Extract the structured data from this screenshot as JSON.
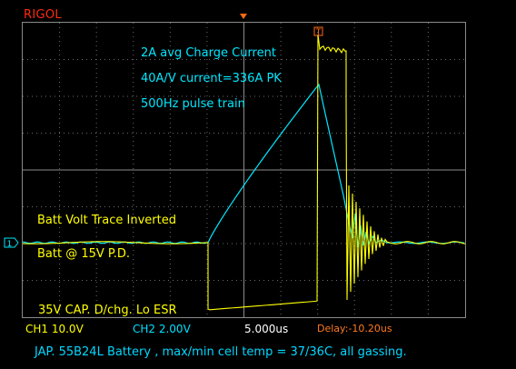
{
  "brand": "RIGOL",
  "annotations": {
    "charge_current": "2A avg Charge Current",
    "scale": "40A/V current=336A PK",
    "pulse": "500Hz pulse train",
    "batt_volt": "Batt Volt Trace Inverted",
    "batt_pd": "Batt @ 15V P.D.",
    "cap": "35V CAP. D/chg. Lo ESR"
  },
  "status_bar": {
    "ch1": "CH1  10.0V",
    "ch2": "CH2  2.00V",
    "timebase": "5.000us",
    "delay": "Delay:-10.20us"
  },
  "footer": "JAP. 55B24L Battery , max/min cell temp = 37/36C, all gassing.",
  "markers": {
    "ch_ground": "1"
  },
  "colors": {
    "ch1_trace": "#ffff00",
    "ch2_trace": "#00e8ff",
    "grid": "#6a6a6a",
    "brand": "#ff2a10"
  }
}
